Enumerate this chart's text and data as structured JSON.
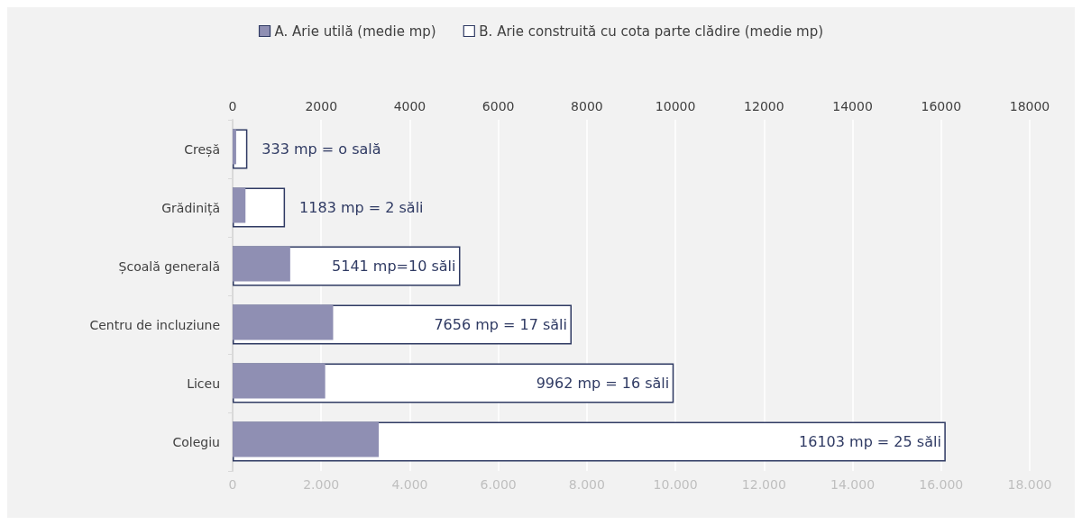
{
  "chart_data": {
    "type": "bar",
    "orientation": "horizontal",
    "categories": [
      "Creșă",
      "Grădiniță",
      "Școală generală",
      "Centru de incluziune",
      "Liceu",
      "Colegiu"
    ],
    "series": [
      {
        "name": "A. Arie utilă (medie mp)",
        "color": "#8f8fb3",
        "values": [
          80,
          290,
          1300,
          2270,
          2090,
          3300
        ]
      },
      {
        "name": "B. Arie construită cu cota parte clădire (medie mp)",
        "color": "#ffffff",
        "values": [
          333,
          1183,
          5141,
          7656,
          9962,
          16103
        ],
        "value_labels": [
          "333 mp = o sală",
          "1183 mp = 2 săli",
          "5141 mp=10 săli",
          "7656 mp = 17 săli",
          "9962 mp = 16 săli",
          "16103 mp = 25 săli"
        ]
      }
    ],
    "xlim": [
      0,
      18000
    ],
    "xticks": [
      0,
      {
        "value": 2000,
        "label": "2.000"
      },
      {
        "value": 4000,
        "label": "4.000"
      },
      {
        "value": 6000,
        "label": "6.000"
      },
      {
        "value": 8000,
        "label": "8.000"
      },
      {
        "value": 10000,
        "label": "10.000"
      },
      {
        "value": 12000,
        "label": "12.000"
      },
      {
        "value": 14000,
        "label": "14.000"
      },
      {
        "value": 16000,
        "label": "16.000"
      },
      {
        "value": 18000,
        "label": "18.000"
      }
    ],
    "x2lim": [
      0,
      18000
    ],
    "x2ticks": [
      0,
      2000,
      4000,
      6000,
      8000,
      10000,
      12000,
      14000,
      16000,
      18000
    ],
    "grid": "x",
    "legend": "top"
  }
}
